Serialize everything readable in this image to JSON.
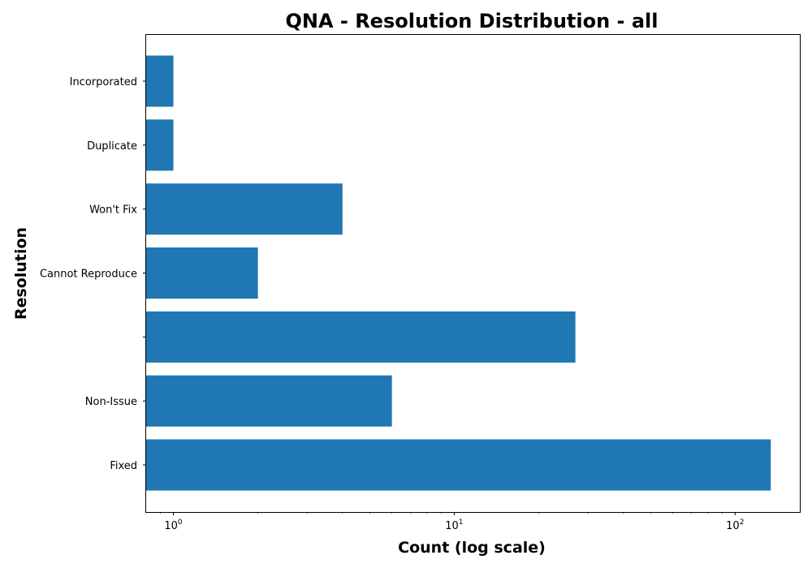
{
  "chart_data": {
    "type": "bar",
    "orientation": "horizontal",
    "title": "QNA - Resolution Distribution - all",
    "xlabel": "Count (log scale)",
    "ylabel": "Resolution",
    "x_scale": "log",
    "xlim": [
      0.8,
      170
    ],
    "x_ticks": [
      {
        "value": 1,
        "base": "10",
        "exp": "0"
      },
      {
        "value": 10,
        "base": "10",
        "exp": "1"
      },
      {
        "value": 100,
        "base": "10",
        "exp": "2"
      }
    ],
    "categories": [
      "Fixed",
      "Non-Issue",
      "",
      "Cannot Reproduce",
      "Won't Fix",
      "Duplicate",
      "Incorporated"
    ],
    "values": [
      134,
      6,
      27,
      2,
      4,
      1,
      1
    ],
    "bar_color": "#1f77b4",
    "grid": false,
    "legend": "none"
  }
}
